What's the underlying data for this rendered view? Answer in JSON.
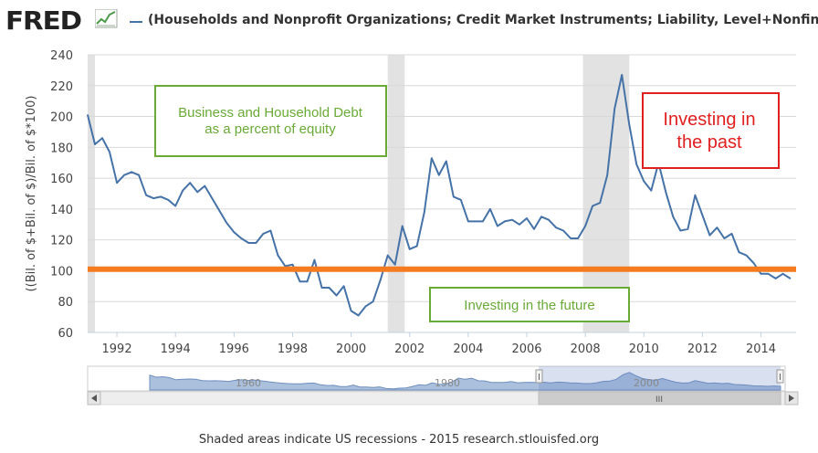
{
  "header": {
    "logo_text": "FRED",
    "series_title": "(Households and Nonprofit Organizations; Credit Market Instruments; Liability, Level+Nonfinanci"
  },
  "chart_data": {
    "type": "line",
    "ylabel": "((Bil. of $+Bil. of $)/Bil. of $*100)",
    "xlabel": "",
    "ylim": [
      60,
      240
    ],
    "yticks": [
      60,
      80,
      100,
      120,
      140,
      160,
      180,
      200,
      220,
      240
    ],
    "xlim": [
      1991.0,
      2015.2
    ],
    "xticks": [
      1992,
      1994,
      1996,
      1998,
      2000,
      2002,
      2004,
      2006,
      2008,
      2010,
      2012,
      2014
    ],
    "grid": true,
    "series": [
      {
        "name": "Business and Household Debt as a percent of equity",
        "color": "#4572a7",
        "x": [
          1991.0,
          1991.25,
          1991.5,
          1991.75,
          1992.0,
          1992.25,
          1992.5,
          1992.75,
          1993.0,
          1993.25,
          1993.5,
          1993.75,
          1994.0,
          1994.25,
          1994.5,
          1994.75,
          1995.0,
          1995.25,
          1995.5,
          1995.75,
          1996.0,
          1996.25,
          1996.5,
          1996.75,
          1997.0,
          1997.25,
          1997.5,
          1997.75,
          1998.0,
          1998.25,
          1998.5,
          1998.75,
          1999.0,
          1999.25,
          1999.5,
          1999.75,
          2000.0,
          2000.25,
          2000.5,
          2000.75,
          2001.0,
          2001.25,
          2001.5,
          2001.75,
          2002.0,
          2002.25,
          2002.5,
          2002.75,
          2003.0,
          2003.25,
          2003.5,
          2003.75,
          2004.0,
          2004.25,
          2004.5,
          2004.75,
          2005.0,
          2005.25,
          2005.5,
          2005.75,
          2006.0,
          2006.25,
          2006.5,
          2006.75,
          2007.0,
          2007.25,
          2007.5,
          2007.75,
          2008.0,
          2008.25,
          2008.5,
          2008.75,
          2009.0,
          2009.25,
          2009.5,
          2009.75,
          2010.0,
          2010.25,
          2010.5,
          2010.75,
          2011.0,
          2011.25,
          2011.5,
          2011.75,
          2012.0,
          2012.25,
          2012.5,
          2012.75,
          2013.0,
          2013.25,
          2013.5,
          2013.75,
          2014.0,
          2014.25,
          2014.5,
          2014.75,
          2015.0
        ],
        "values": [
          201,
          182,
          186,
          177,
          157,
          162,
          164,
          162,
          149,
          147,
          148,
          146,
          142,
          152,
          157,
          151,
          155,
          147,
          139,
          131,
          125,
          121,
          118,
          118,
          124,
          126,
          110,
          103,
          104,
          93,
          93,
          107,
          89,
          89,
          84,
          90,
          74,
          71,
          77,
          80,
          94,
          110,
          104,
          129,
          114,
          116,
          138,
          173,
          162,
          171,
          148,
          146,
          132,
          132,
          132,
          140,
          129,
          132,
          133,
          130,
          134,
          127,
          135,
          133,
          128,
          126,
          121,
          121,
          129,
          142,
          144,
          162,
          205,
          227,
          195,
          169,
          158,
          152,
          170,
          151,
          135,
          126,
          127,
          149,
          136,
          123,
          128,
          121,
          124,
          112,
          110,
          105,
          98,
          98,
          95,
          98,
          95
        ]
      }
    ],
    "recessions": [
      [
        1991.0,
        1991.25
      ],
      [
        2001.25,
        2001.83
      ],
      [
        2007.92,
        2009.5
      ]
    ],
    "reference_line": {
      "value": 101,
      "color": "#f47b20"
    },
    "annotations": {
      "business": {
        "lines": [
          "Business and Household Debt",
          "as a percent of equity"
        ],
        "color": "#6aaa37"
      },
      "past": {
        "lines": [
          "Investing in",
          "the past"
        ],
        "color": "#e0201f"
      },
      "future": {
        "lines": [
          "Investing in the future"
        ],
        "color": "#6aaa37"
      }
    },
    "navigator": {
      "labels": [
        "1960",
        "1980",
        "2000"
      ],
      "scrollbar_grip": "III"
    }
  },
  "footer": {
    "text": "Shaded areas indicate US recessions - 2015 research.stlouisfed.org"
  }
}
